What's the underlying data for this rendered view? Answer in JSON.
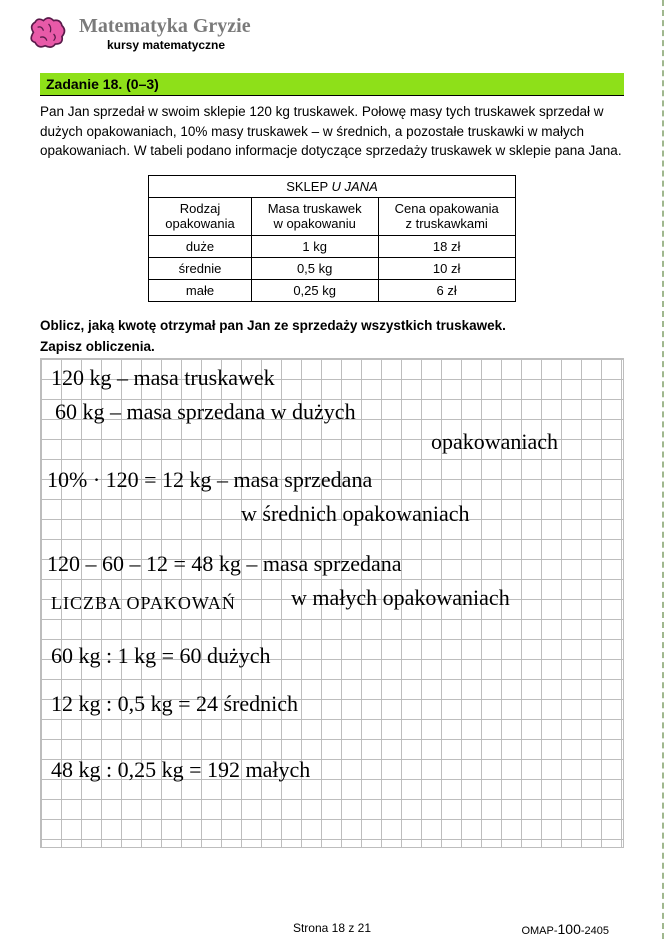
{
  "header": {
    "brand": "Matematyka Gryzie",
    "subtitle": "kursy matematyczne"
  },
  "task": {
    "bar": "Zadanie 18. (0–3)",
    "problem": "Pan Jan sprzedał w swoim sklepie  120 kg  truskawek. Połowę masy tych truskawek sprzedał w dużych opakowaniach,  10%  masy truskawek – w średnich, a pozostałe truskawki w małych opakowaniach. W tabeli podano informacje dotyczące sprzedaży truskawek w sklepie pana Jana.",
    "table_title": "SKLEP U JANA",
    "columns": [
      "Rodzaj opakowania",
      "Masa truskawek w opakowaniu",
      "Cena opakowania z truskawkami"
    ],
    "rows": [
      [
        "duże",
        "1 kg",
        "18 zł"
      ],
      [
        "średnie",
        "0,5 kg",
        "10 zł"
      ],
      [
        "małe",
        "0,25 kg",
        "6 zł"
      ]
    ],
    "instruction1": "Oblicz, jaką kwotę otrzymał pan Jan ze sprzedaży wszystkich truskawek.",
    "instruction2": "Zapisz obliczenia."
  },
  "handwriting": {
    "l1": "120 kg – masa   truskawek",
    "l2": "60 kg – masa  sprzedana   w   dużych",
    "l2b": "opakowaniach",
    "l3": "10% · 120 = 12 kg – masa   sprzedana",
    "l3b": "w   średnich  opakowaniach",
    "l4": "120 – 60 – 12 = 48 kg – masa  sprzedana",
    "l4b": "w  małych  opakowaniach",
    "l5": "LICZBA  OPAKOWAŃ",
    "l6": "60 kg : 1 kg = 60  dużych",
    "l7": "12 kg : 0,5 kg = 24  średnich",
    "l8": "48 kg : 0,25 kg = 192  małych"
  },
  "footer": {
    "page": "Strona 18 z 21",
    "code_prefix": "OMAP-",
    "code_big": "100",
    "code_suffix": "-2405"
  },
  "colors": {
    "accent": "#8ee019",
    "brain_pink": "#e85aa8",
    "brain_outline": "#5a1a4a"
  }
}
